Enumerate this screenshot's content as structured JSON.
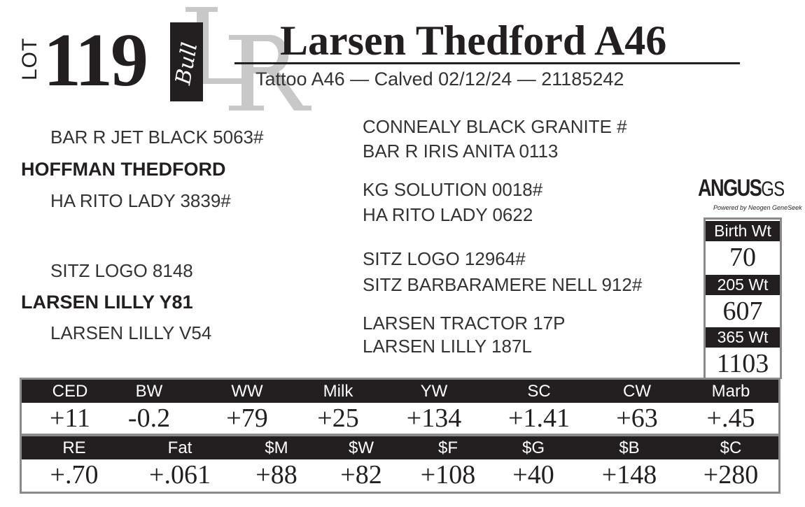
{
  "lot": {
    "label": "LOT",
    "number": "119",
    "sex": "Bull",
    "watermark": "LR"
  },
  "animal": {
    "name": "Larsen Thedford A46",
    "subtitle": "Tattoo A46  —  Calved 02/12/24  —  21185242"
  },
  "pedigree": {
    "sire": "HOFFMAN THEDFORD",
    "sire_sire": "BAR R JET BLACK 5063#",
    "sire_dam": "HA RITO LADY 3839#",
    "dam": "LARSEN LILLY Y81",
    "dam_sire": "SITZ LOGO 8148",
    "dam_dam": "LARSEN LILLY V54",
    "ggp": [
      "CONNEALY BLACK GRANITE #",
      "BAR R IRIS ANITA 0113",
      "KG SOLUTION 0018#",
      "HA RITO LADY 0622",
      "SITZ LOGO 12964#",
      "SITZ BARBARAMERE NELL 912#",
      "LARSEN TRACTOR 17P",
      "LARSEN LILLY 187L"
    ]
  },
  "logo": {
    "main": "ANGUS",
    "suffix": "GS",
    "tagline": "Powered by Neogen GeneSeek"
  },
  "weights": [
    {
      "label": "Birth Wt",
      "value": "70"
    },
    {
      "label": "205 Wt",
      "value": "607"
    },
    {
      "label": "365 Wt",
      "value": "1103"
    }
  ],
  "epds_row1": [
    {
      "label": "CED",
      "value": "+11"
    },
    {
      "label": "BW",
      "value": "-0.2"
    },
    {
      "label": "WW",
      "value": "+79"
    },
    {
      "label": "Milk",
      "value": "+25"
    },
    {
      "label": "YW",
      "value": "+134"
    },
    {
      "label": "SC",
      "value": "+1.41"
    },
    {
      "label": "CW",
      "value": "+63"
    },
    {
      "label": "Marb",
      "value": "+.45"
    }
  ],
  "epds_row2": [
    {
      "label": "RE",
      "value": "+.70"
    },
    {
      "label": "Fat",
      "value": "+.061"
    },
    {
      "label": "$M",
      "value": "+88"
    },
    {
      "label": "$W",
      "value": "+82"
    },
    {
      "label": "$F",
      "value": "+108"
    },
    {
      "label": "$G",
      "value": "+40"
    },
    {
      "label": "$B",
      "value": "+148"
    },
    {
      "label": "$C",
      "value": "+280"
    }
  ]
}
